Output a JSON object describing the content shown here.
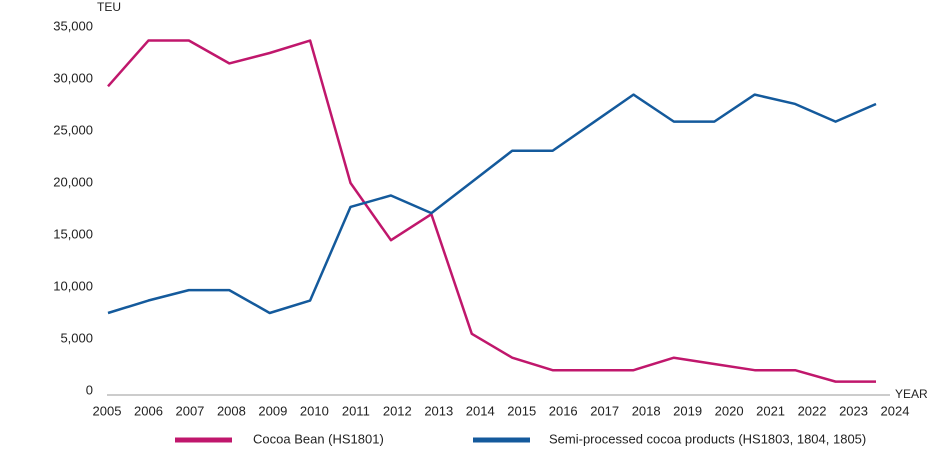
{
  "chart_data": {
    "type": "line",
    "y_label": "TEU",
    "x_label": "YEAR",
    "x": [
      2005,
      2006,
      2007,
      2008,
      2009,
      2010,
      2011,
      2012,
      2013,
      2014,
      2015,
      2016,
      2017,
      2018,
      2019,
      2020,
      2021,
      2022,
      2023,
      2024
    ],
    "series": [
      {
        "name": "Cocoa Bean (HS1801)",
        "color": "#c0176c",
        "values": [
          29300,
          33700,
          33700,
          31500,
          32500,
          33700,
          20000,
          14500,
          17000,
          5500,
          3200,
          2000,
          2000,
          2000,
          3200,
          2600,
          2000,
          2000,
          900,
          900
        ]
      },
      {
        "name": "Semi-processed cocoa products (HS1803, 1804, 1805)",
        "color": "#145a9c",
        "values": [
          7500,
          8700,
          9700,
          9700,
          7500,
          8700,
          17700,
          18800,
          17100,
          20100,
          23100,
          23100,
          25800,
          28500,
          25900,
          25900,
          28500,
          27600,
          25900,
          27600
        ]
      }
    ],
    "xlim": [
      2005,
      2024
    ],
    "xticks": [
      2005,
      2006,
      2007,
      2008,
      2009,
      2010,
      2011,
      2012,
      2013,
      2014,
      2015,
      2016,
      2017,
      2018,
      2019,
      2020,
      2021,
      2022,
      2023,
      2024
    ],
    "ylim": [
      0,
      35000
    ],
    "yticks": [
      0,
      {
        "value": 5000,
        "label": "5,000"
      },
      {
        "value": 10000,
        "label": "10,000"
      },
      {
        "value": 15000,
        "label": "15,000"
      },
      {
        "value": 20000,
        "label": "20,000"
      },
      {
        "value": 25000,
        "label": "25,000"
      },
      {
        "value": 30000,
        "label": "30,000"
      },
      {
        "value": 35000,
        "label": "35,000"
      }
    ],
    "grid": false
  }
}
